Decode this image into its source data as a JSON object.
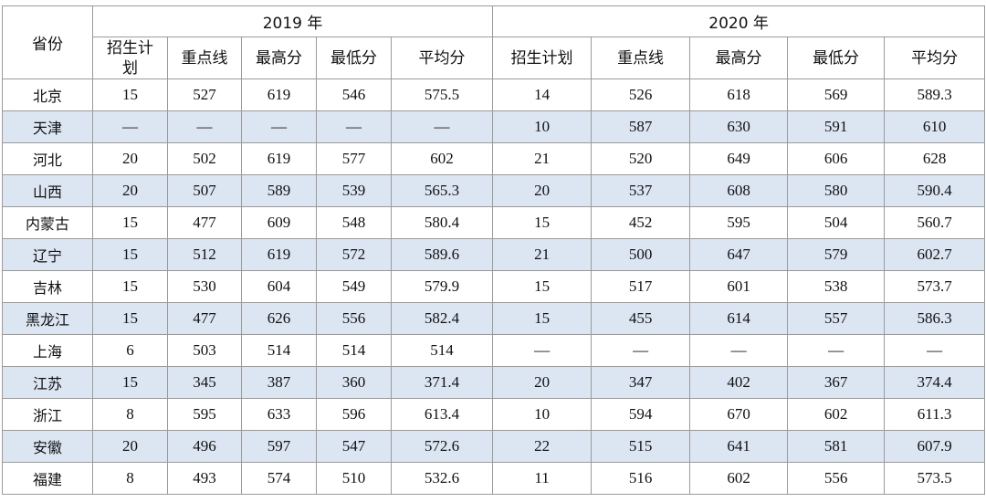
{
  "table": {
    "header": {
      "province": "省份",
      "years": [
        "2019 年",
        "2020 年"
      ],
      "columns": [
        [
          "招生计划",
          "重点线",
          "最高分",
          "最低分",
          "平均分"
        ],
        [
          "招生计划",
          "重点线",
          "最高分",
          "最低分",
          "平均分"
        ]
      ]
    },
    "rows": [
      [
        "北京",
        "15",
        "527",
        "619",
        "546",
        "575.5",
        "14",
        "526",
        "618",
        "569",
        "589.3"
      ],
      [
        "天津",
        "—",
        "—",
        "—",
        "—",
        "—",
        "10",
        "587",
        "630",
        "591",
        "610"
      ],
      [
        "河北",
        "20",
        "502",
        "619",
        "577",
        "602",
        "21",
        "520",
        "649",
        "606",
        "628"
      ],
      [
        "山西",
        "20",
        "507",
        "589",
        "539",
        "565.3",
        "20",
        "537",
        "608",
        "580",
        "590.4"
      ],
      [
        "内蒙古",
        "15",
        "477",
        "609",
        "548",
        "580.4",
        "15",
        "452",
        "595",
        "504",
        "560.7"
      ],
      [
        "辽宁",
        "15",
        "512",
        "619",
        "572",
        "589.6",
        "21",
        "500",
        "647",
        "579",
        "602.7"
      ],
      [
        "吉林",
        "15",
        "530",
        "604",
        "549",
        "579.9",
        "15",
        "517",
        "601",
        "538",
        "573.7"
      ],
      [
        "黑龙江",
        "15",
        "477",
        "626",
        "556",
        "582.4",
        "15",
        "455",
        "614",
        "557",
        "586.3"
      ],
      [
        "上海",
        "6",
        "503",
        "514",
        "514",
        "514",
        "—",
        "—",
        "—",
        "—",
        "—"
      ],
      [
        "江苏",
        "15",
        "345",
        "387",
        "360",
        "371.4",
        "20",
        "347",
        "402",
        "367",
        "374.4"
      ],
      [
        "浙江",
        "8",
        "595",
        "633",
        "596",
        "613.4",
        "10",
        "594",
        "670",
        "602",
        "611.3"
      ],
      [
        "安徽",
        "20",
        "496",
        "597",
        "547",
        "572.6",
        "22",
        "515",
        "641",
        "581",
        "607.9"
      ],
      [
        "福建",
        "8",
        "493",
        "574",
        "510",
        "532.6",
        "11",
        "516",
        "602",
        "556",
        "573.5"
      ]
    ]
  }
}
